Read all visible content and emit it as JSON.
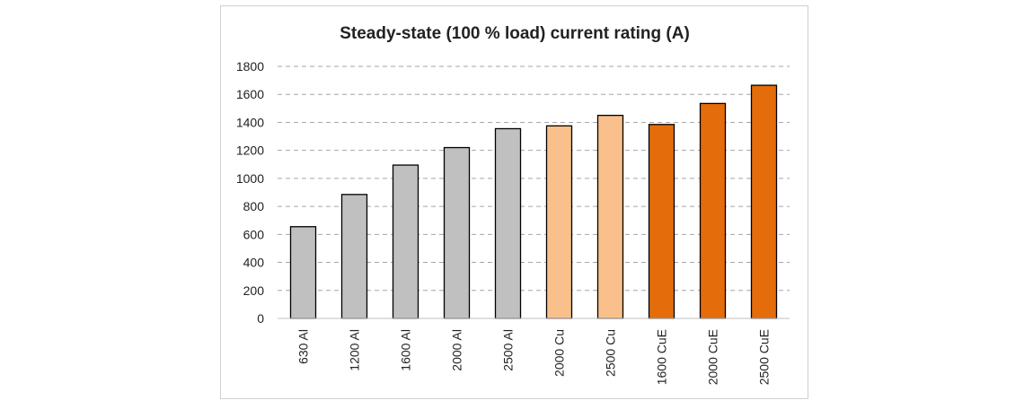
{
  "chart_data": {
    "type": "bar",
    "title": "Steady-state (100 % load) current rating (A)",
    "xlabel": "",
    "ylabel": "",
    "ylim": [
      0,
      1800
    ],
    "yticks": [
      0,
      200,
      400,
      600,
      800,
      1000,
      1200,
      1400,
      1600,
      1800
    ],
    "grid": true,
    "categories": [
      "630 Al",
      "1200 Al",
      "1600 Al",
      "2000 Al",
      "2500 Al",
      "2000 Cu",
      "2500 Cu",
      "1600 CuE",
      "2000 CuE",
      "2500 CuE"
    ],
    "values": [
      655,
      885,
      1095,
      1220,
      1355,
      1375,
      1450,
      1385,
      1535,
      1665
    ],
    "bar_colors": [
      "#c0c0c0",
      "#c0c0c0",
      "#c0c0c0",
      "#c0c0c0",
      "#c0c0c0",
      "#f9c08c",
      "#f9c08c",
      "#e46c0a",
      "#e46c0a",
      "#e46c0a"
    ],
    "bar_edge_color": "#000000",
    "grid_color": "#a6a6a6"
  }
}
